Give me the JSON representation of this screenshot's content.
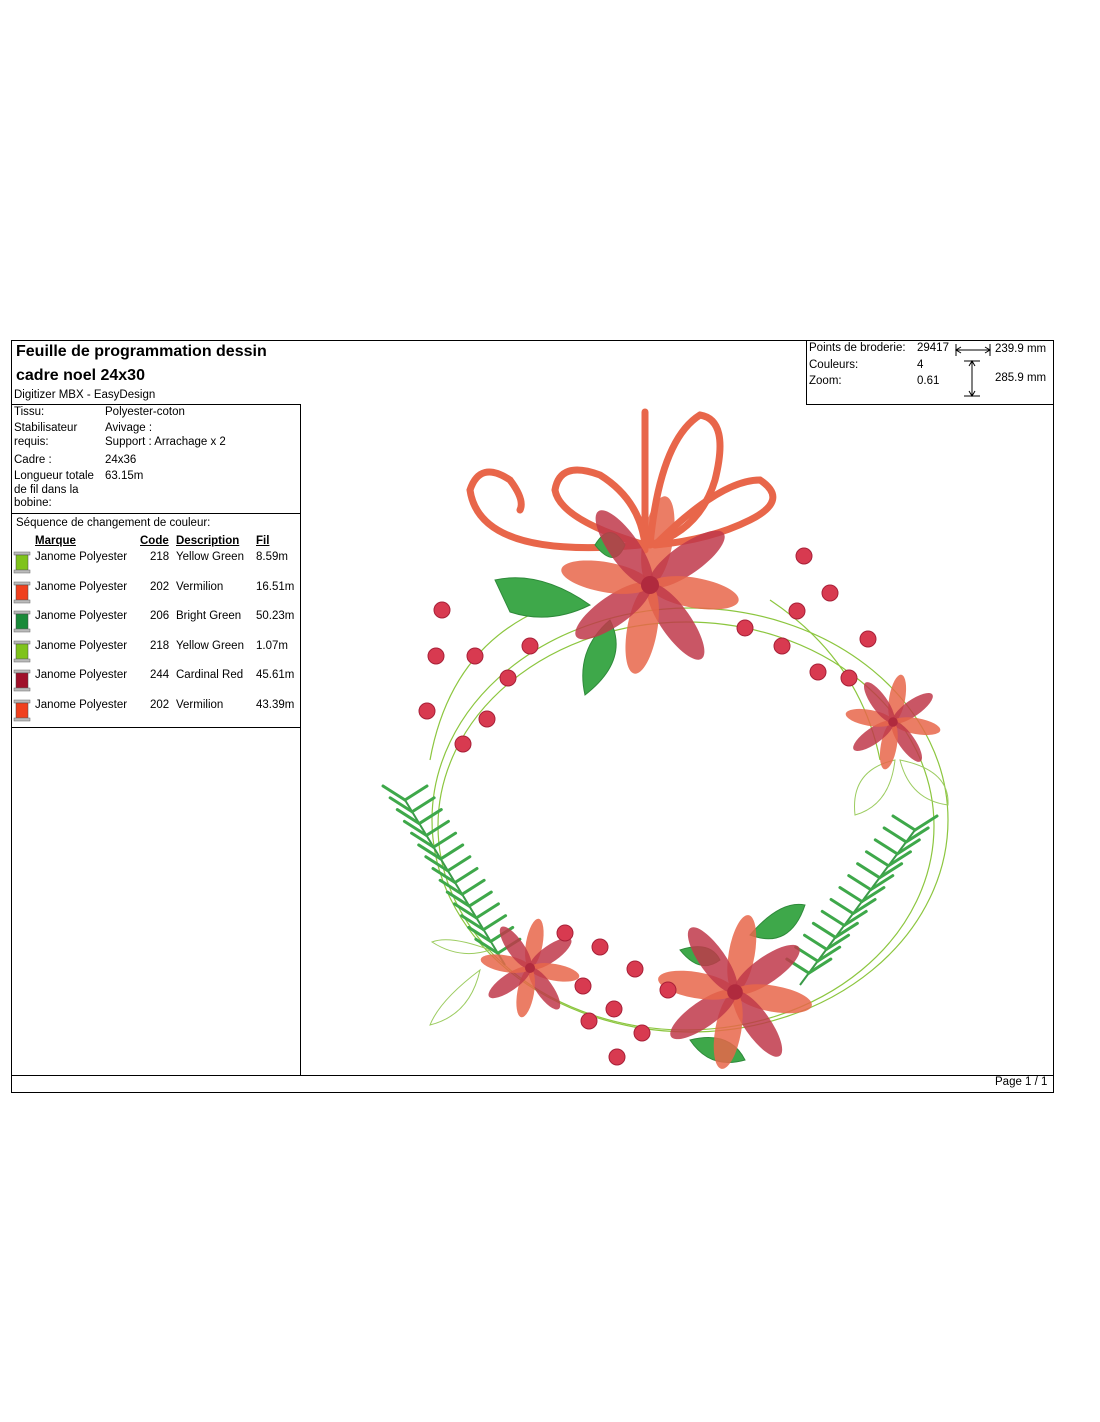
{
  "header": {
    "title_line1": "Feuille de programmation dessin",
    "title_line2": "cadre noel 24x30",
    "subtitle": "Digitizer MBX - EasyDesign"
  },
  "stats": [
    {
      "label": "Points de broderie:",
      "value": "29417"
    },
    {
      "label": "Couleurs:",
      "value": "4"
    },
    {
      "label": "Zoom:",
      "value": "0.61"
    }
  ],
  "dimensions": {
    "width": "239.9 mm",
    "height": "285.9 mm"
  },
  "properties": [
    {
      "label": "Tissu:",
      "value": [
        "Polyester-coton"
      ]
    },
    {
      "label": "Stabilisateur requis:",
      "value": [
        "Avivage :",
        "Support : Arrachage x 2"
      ]
    },
    {
      "label": "Cadre :",
      "value": [
        "24x36"
      ]
    },
    {
      "label": "Longueur totale de fil dans la bobine:",
      "value": [
        "63.15m"
      ]
    }
  ],
  "color_sequence": {
    "heading": "Séquence de changement de couleur:",
    "columns": [
      "Marque",
      "Code",
      "Description",
      "Fil"
    ],
    "rows": [
      {
        "brand": "Janome Polyester",
        "code": "218",
        "description": "Yellow Green",
        "thread": "8.59m",
        "color": "#7fc31c"
      },
      {
        "brand": "Janome Polyester",
        "code": "202",
        "description": "Vermilion",
        "thread": "16.51m",
        "color": "#f0401e"
      },
      {
        "brand": "Janome Polyester",
        "code": "206",
        "description": "Bright Green",
        "thread": "50.23m",
        "color": "#1a8a3a"
      },
      {
        "brand": "Janome Polyester",
        "code": "218",
        "description": "Yellow Green",
        "thread": "1.07m",
        "color": "#7fc31c"
      },
      {
        "brand": "Janome Polyester",
        "code": "244",
        "description": "Cardinal Red",
        "thread": "45.61m",
        "color": "#a0102a"
      },
      {
        "brand": "Janome Polyester",
        "code": "202",
        "description": "Vermilion",
        "thread": "43.39m",
        "color": "#f0401e"
      }
    ]
  },
  "footer": {
    "page": "Page 1 / 1"
  }
}
